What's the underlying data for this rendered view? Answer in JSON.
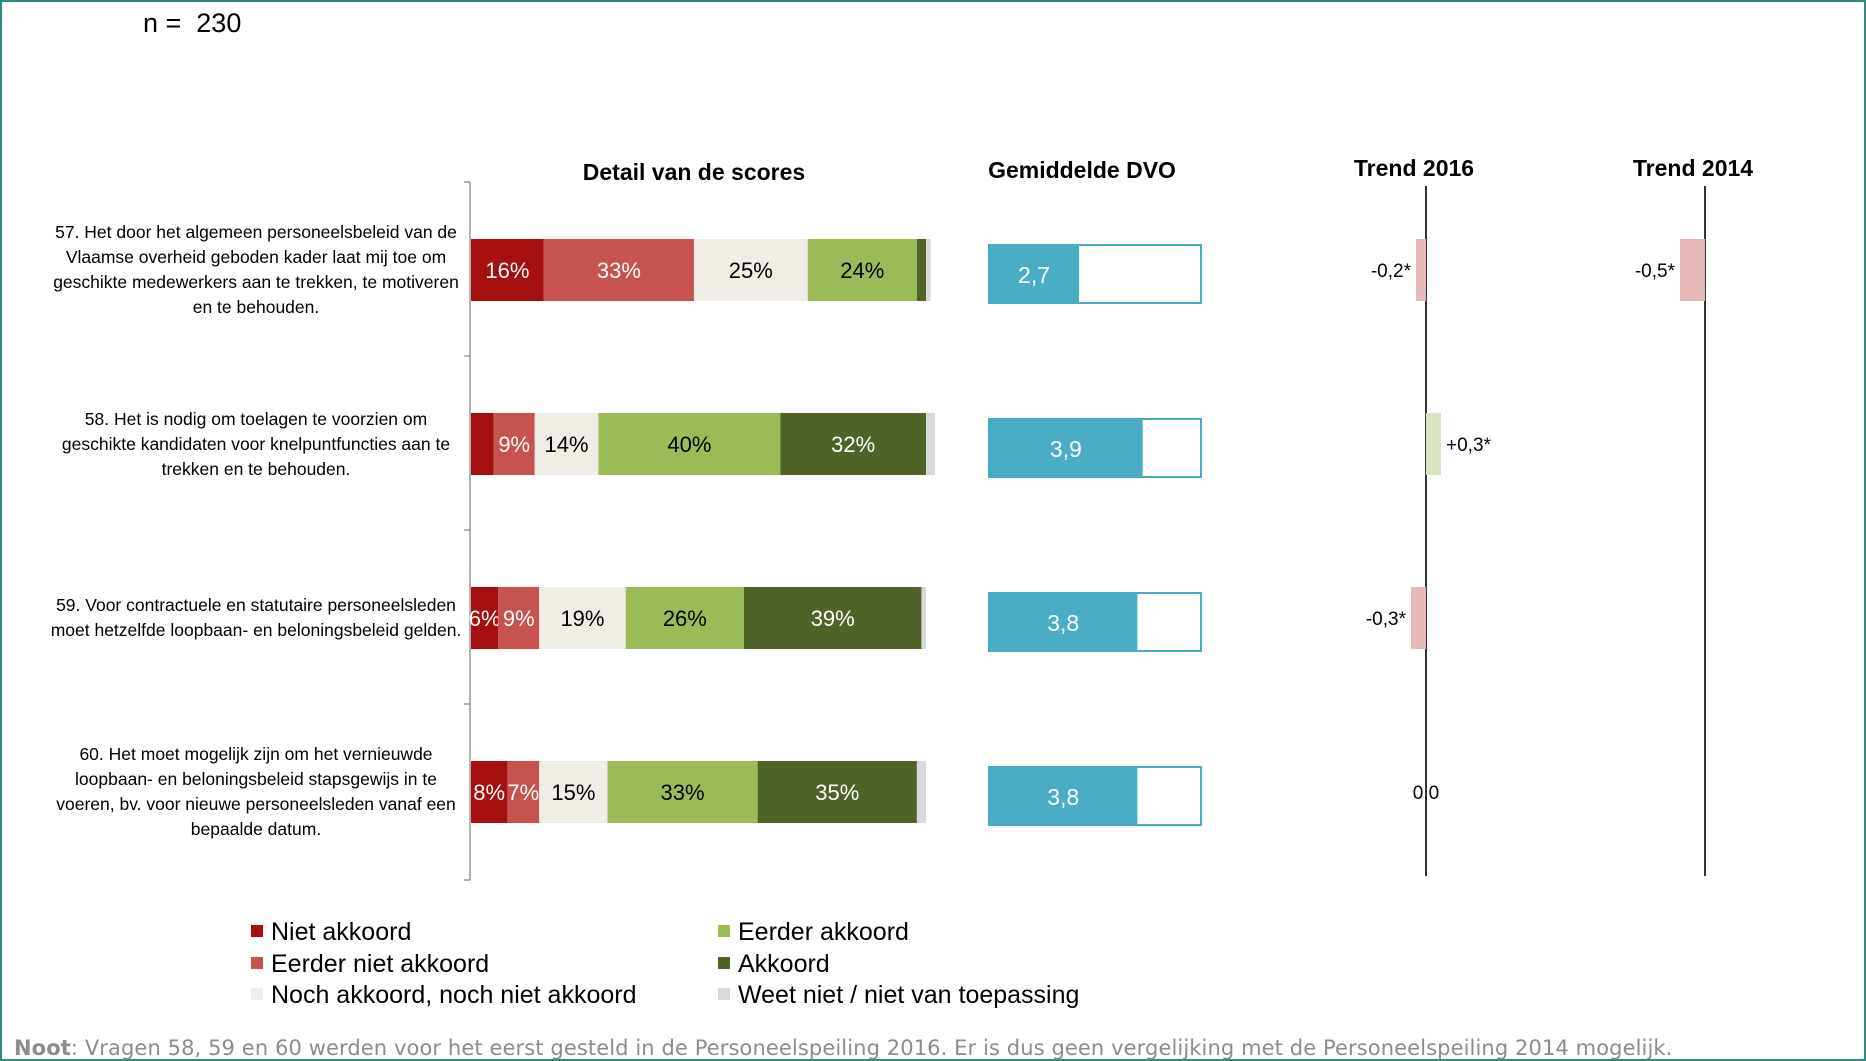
{
  "n_label": "n =  230",
  "headers": {
    "detail": "Detail van de scores",
    "dvo": "Gemiddelde DVO",
    "trend2016": "Trend 2016",
    "trend2014": "Trend 2014"
  },
  "colors": {
    "niet_akkoord": "#a50f0f",
    "eerder_niet_akkoord": "#c65350",
    "noch": "#efede5",
    "eerder_akkoord": "#9bbb59",
    "akkoord": "#4f6228",
    "weet_niet": "#d9d9d9",
    "dvo_fill": "#4bacc6",
    "trend_neg": "#e6b9b8",
    "trend_pos": "#d7e4bd",
    "frame": "#2e8b80",
    "note": "#8c8c8c"
  },
  "legend": [
    {
      "label": "Niet akkoord",
      "color": "#a50f0f"
    },
    {
      "label": "Eerder niet akkoord",
      "color": "#c65350"
    },
    {
      "label": "Noch akkoord, noch niet akkoord",
      "color": "#efede5"
    },
    {
      "label": "Eerder akkoord",
      "color": "#9bbb59"
    },
    {
      "label": "Akkoord",
      "color": "#4f6228"
    },
    {
      "label": "Weet niet / niet van toepassing",
      "color": "#d9d9d9"
    }
  ],
  "note": {
    "bold": "Noot",
    "text": ": Vragen 58, 59 en 60 werden voor het eerst gesteld in de Personeelspeiling 2016. Er is dus geen vergelijking met de Personeelspeiling 2014 mogelijk."
  },
  "chart_data": {
    "type": "bar",
    "stacked": true,
    "dvo_scale": [
      1,
      5
    ],
    "questions": [
      "57. Het door het algemeen personeelsbeleid van de Vlaamse overheid geboden kader laat mij toe om geschikte medewerkers aan te trekken, te motiveren en te behouden.",
      "58. Het is nodig om toelagen te voorzien om geschikte kandidaten voor knelpuntfuncties aan te trekken en te behouden.",
      "59.  Voor contractuele en statutaire personeelsleden moet hetzelfde loopbaan- en beloningsbeleid gelden.",
      "60.  Het moet mogelijk zijn om het vernieuwde loopbaan- en beloningsbeleid stapsgewijs in te voeren, bv. voor nieuwe personeelsleden vanaf een bepaalde datum."
    ],
    "series": [
      {
        "name": "Niet akkoord",
        "values": [
          16,
          5,
          6,
          8
        ],
        "labels": [
          "16%",
          "",
          "6%",
          "8%"
        ]
      },
      {
        "name": "Eerder niet akkoord",
        "values": [
          33,
          9,
          9,
          7
        ],
        "labels": [
          "33%",
          "9%",
          "9%",
          "7%"
        ]
      },
      {
        "name": "Noch akkoord, noch niet akkoord",
        "values": [
          25,
          14,
          19,
          15
        ],
        "labels": [
          "25%",
          "14%",
          "19%",
          "15%"
        ]
      },
      {
        "name": "Eerder akkoord",
        "values": [
          24,
          40,
          26,
          33
        ],
        "labels": [
          "24%",
          "40%",
          "26%",
          "33%"
        ]
      },
      {
        "name": "Akkoord",
        "values": [
          2,
          32,
          39,
          35
        ],
        "labels": [
          "",
          "32%",
          "39%",
          "35%"
        ]
      },
      {
        "name": "Weet niet / niet van toepassing",
        "values": [
          1,
          2,
          1,
          2
        ],
        "labels": [
          "",
          "",
          "",
          ""
        ]
      }
    ],
    "dvo": [
      {
        "value": 2.7,
        "label": "2,7"
      },
      {
        "value": 3.9,
        "label": "3,9"
      },
      {
        "value": 3.8,
        "label": "3,8"
      },
      {
        "value": 3.8,
        "label": "3,8"
      }
    ],
    "trend2016": [
      {
        "value": -0.2,
        "label": "-0,2*"
      },
      {
        "value": 0.3,
        "label": "+0,3*"
      },
      {
        "value": -0.3,
        "label": "-0,3*"
      },
      {
        "value": 0.0,
        "label": "0,0"
      }
    ],
    "trend2014": [
      {
        "value": -0.5,
        "label": "-0,5*"
      },
      null,
      null,
      null
    ]
  }
}
